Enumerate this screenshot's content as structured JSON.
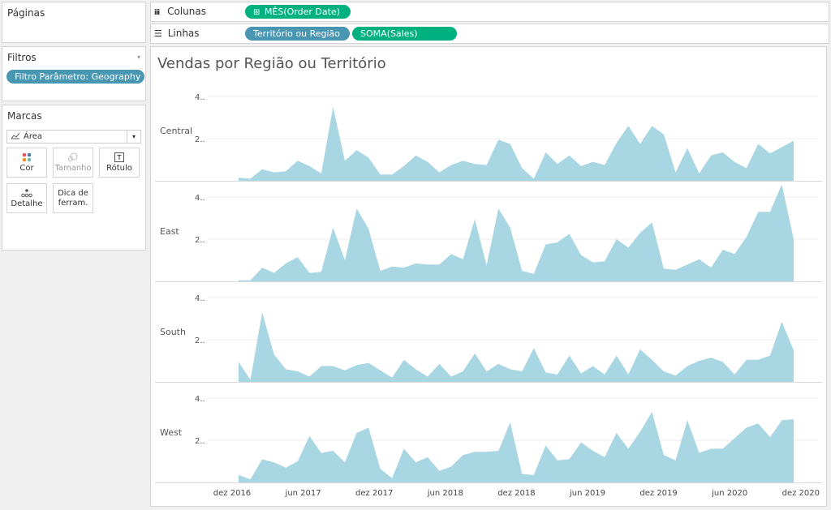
{
  "sidebar": {
    "pages_title": "Páginas",
    "filters_title": "Filtros",
    "filter_pill": "Filtro Parâmetro: Geography",
    "marks_title": "Marcas",
    "mark_type": "Área",
    "cards": [
      {
        "label": "Cor",
        "icon": "color-dots-icon"
      },
      {
        "label": "Tamanho",
        "icon": "size-icon"
      },
      {
        "label": "Rótulo",
        "icon": "label-t-icon"
      },
      {
        "label": "Detalhe",
        "icon": "detail-dots-icon"
      },
      {
        "label": "Dica de ferram.",
        "icon": "tooltip-icon"
      }
    ]
  },
  "shelves": {
    "columns_label": "Colunas",
    "columns_pill": "MÊS(Order Date)",
    "rows_label": "Linhas",
    "rows_pills": [
      "Território ou Região",
      "SOMA(Sales)"
    ]
  },
  "colors": {
    "area": "#a8d6e2",
    "green_pill": "#00b180",
    "blue_pill": "#4996b2"
  },
  "chart_data": {
    "type": "area",
    "title": "Vendas por Região ou Território",
    "y_tick_labels": [
      "4..",
      "2.."
    ],
    "ylim": [
      0,
      4.5
    ],
    "x_tick_labels": [
      "dez 2016",
      "jun 2017",
      "dez 2017",
      "jun 2018",
      "dez 2018",
      "jun 2019",
      "dez 2019",
      "jun 2020",
      "dez 2020"
    ],
    "x_start": "jan 2017",
    "x_end": "dez 2020",
    "series": [
      {
        "name": "Central",
        "values": [
          0.15,
          0.1,
          0.55,
          0.4,
          0.45,
          0.95,
          0.7,
          0.35,
          3.5,
          0.95,
          1.45,
          1.1,
          0.3,
          0.3,
          0.7,
          1.2,
          0.9,
          0.4,
          0.75,
          0.95,
          0.8,
          0.75,
          1.95,
          1.75,
          0.6,
          0.1,
          1.35,
          0.8,
          1.2,
          0.7,
          0.9,
          0.75,
          1.8,
          2.6,
          1.75,
          2.6,
          2.2,
          0.4,
          1.55,
          0.35,
          1.2,
          1.35,
          0.9,
          0.6,
          1.75,
          1.3,
          1.6,
          1.9
        ]
      },
      {
        "name": "East",
        "values": [
          0.05,
          0.05,
          0.65,
          0.4,
          0.85,
          1.15,
          0.4,
          0.45,
          2.55,
          1.0,
          3.45,
          2.5,
          0.5,
          0.7,
          0.65,
          0.85,
          0.8,
          0.8,
          1.3,
          1.05,
          2.95,
          0.75,
          3.45,
          2.55,
          0.5,
          0.35,
          1.75,
          1.85,
          2.25,
          1.25,
          0.9,
          0.95,
          2.0,
          1.6,
          2.3,
          2.8,
          0.6,
          0.55,
          0.8,
          1.05,
          0.65,
          1.5,
          1.3,
          2.1,
          3.3,
          3.3,
          4.6,
          2.0
        ]
      },
      {
        "name": "South",
        "values": [
          0.95,
          0.1,
          3.3,
          1.3,
          0.6,
          0.5,
          0.25,
          0.75,
          0.75,
          0.55,
          0.8,
          0.9,
          0.55,
          0.2,
          1.05,
          0.6,
          0.25,
          0.85,
          0.25,
          0.5,
          1.35,
          0.5,
          0.85,
          0.6,
          0.5,
          1.6,
          0.45,
          0.35,
          1.25,
          0.4,
          0.75,
          0.35,
          1.25,
          0.35,
          1.55,
          1.05,
          0.5,
          0.3,
          0.75,
          1.0,
          1.15,
          0.95,
          0.35,
          1.05,
          1.05,
          1.25,
          2.85,
          1.5
        ]
      },
      {
        "name": "West",
        "values": [
          0.35,
          0.15,
          1.1,
          0.95,
          0.7,
          1.0,
          2.2,
          1.4,
          1.5,
          0.95,
          2.35,
          2.6,
          0.65,
          0.2,
          1.6,
          0.95,
          1.2,
          0.55,
          0.75,
          1.3,
          1.45,
          1.45,
          1.5,
          2.85,
          0.4,
          0.35,
          1.75,
          1.05,
          1.1,
          1.9,
          1.5,
          1.2,
          2.35,
          1.6,
          2.4,
          3.35,
          1.3,
          1.05,
          2.95,
          1.4,
          1.6,
          1.6,
          2.1,
          2.6,
          2.8,
          2.15,
          2.95,
          3.0
        ]
      }
    ],
    "grid": true,
    "legend": "none"
  }
}
